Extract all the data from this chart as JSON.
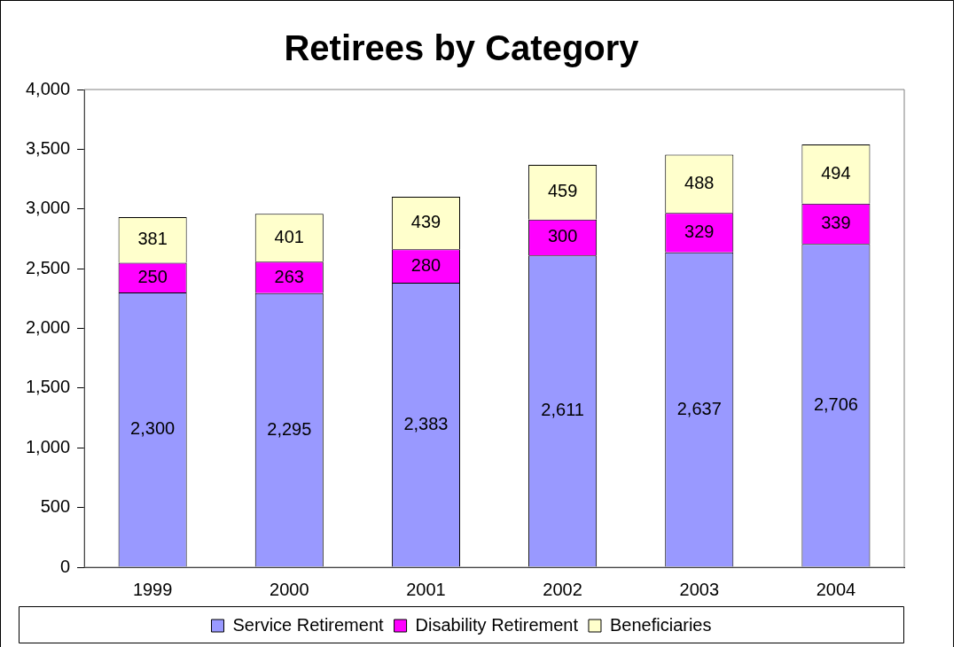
{
  "chart_data": {
    "type": "bar",
    "title": "Retirees by Category",
    "categories": [
      "1999",
      "2000",
      "2001",
      "2002",
      "2003",
      "2004"
    ],
    "stacked": true,
    "series": [
      {
        "name": "Service Retirement",
        "color": "#9999ff",
        "values": [
          2300,
          2295,
          2383,
          2611,
          2637,
          2706
        ],
        "value_labels": [
          "2,300",
          "2,295",
          "2,383",
          "2,611",
          "2,637",
          "2,706"
        ]
      },
      {
        "name": "Disability Retirement",
        "color": "#ff00ff",
        "values": [
          250,
          263,
          280,
          300,
          329,
          339
        ]
      },
      {
        "name": "Beneficiaries",
        "color": "#ffffcc",
        "values": [
          381,
          401,
          439,
          459,
          488,
          494
        ]
      }
    ],
    "ylim": [
      0,
      4000
    ],
    "yticks": [
      {
        "value": 0,
        "label": "0"
      },
      {
        "value": 500,
        "label": "500"
      },
      {
        "value": 1000,
        "label": "1,000"
      },
      {
        "value": 1500,
        "label": "1,500"
      },
      {
        "value": 2000,
        "label": "2,000"
      },
      {
        "value": 2500,
        "label": "2,500"
      },
      {
        "value": 3000,
        "label": "3,000"
      },
      {
        "value": 3500,
        "label": "3,500"
      },
      {
        "value": 4000,
        "label": "4,000"
      }
    ],
    "grid": false,
    "legend": "bottom",
    "data_labels": true
  }
}
